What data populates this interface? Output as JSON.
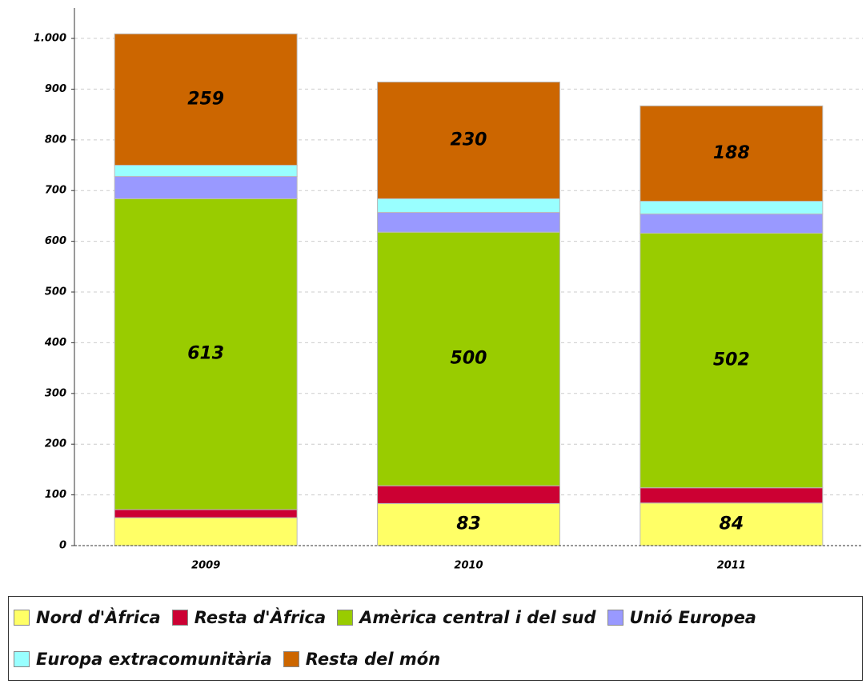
{
  "chart_data": {
    "type": "stacked_bar",
    "categories": [
      "2009",
      "2010",
      "2011"
    ],
    "series": [
      {
        "name": "Nord d'Àfrica",
        "color": "#ffff66",
        "values": [
          55,
          83,
          84
        ],
        "value_labels": [
          null,
          "83",
          "84"
        ]
      },
      {
        "name": "Resta d'Àfrica",
        "color": "#cc0033",
        "values": [
          16,
          35,
          30
        ],
        "value_labels": [
          null,
          null,
          null
        ]
      },
      {
        "name": "Amèrica central i del sud",
        "color": "#99cc00",
        "values": [
          613,
          500,
          502
        ],
        "value_labels": [
          "613",
          "500",
          "502"
        ]
      },
      {
        "name": "Unió Europea",
        "color": "#9999ff",
        "values": [
          44,
          39,
          38
        ],
        "value_labels": [
          null,
          null,
          null
        ]
      },
      {
        "name": "Europa extracomunitària",
        "color": "#99ffff",
        "values": [
          22,
          27,
          25
        ],
        "value_labels": [
          null,
          null,
          null
        ]
      },
      {
        "name": "Resta del món",
        "color": "#cc6600",
        "values": [
          259,
          230,
          188
        ],
        "value_labels": [
          "259",
          "230",
          "188"
        ]
      }
    ],
    "ylim": [
      0,
      1060
    ],
    "yticks": [
      0,
      100,
      200,
      300,
      400,
      500,
      600,
      700,
      800,
      900,
      {
        "value": 1000,
        "label": "1.000"
      }
    ],
    "grid": true,
    "legend": "bottom"
  }
}
